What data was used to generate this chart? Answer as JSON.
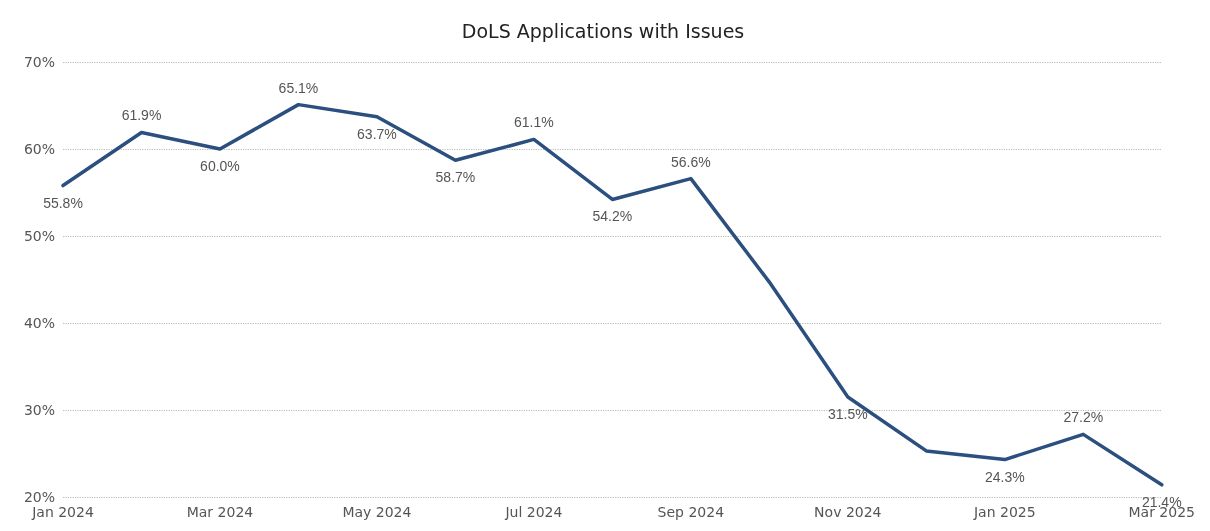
{
  "chart_data": {
    "type": "line",
    "title": "DoLS Applications with Issues",
    "categories": [
      "Jan 2024",
      null,
      "Mar 2024",
      null,
      "May 2024",
      null,
      "Jul 2024",
      null,
      "Sep 2024",
      null,
      "Nov 2024",
      null,
      "Jan 2025",
      null,
      "Mar 2025"
    ],
    "series": [
      {
        "color": "#2b4f7e",
        "values": [
          55.8,
          61.9,
          60.0,
          65.1,
          63.7,
          58.7,
          61.1,
          54.2,
          56.6,
          44.7,
          31.5,
          25.3,
          24.3,
          27.2,
          21.4
        ],
        "value_labels": [
          "55.8%",
          "61.9%",
          "60.0%",
          "65.1%",
          "63.7%",
          "58.7%",
          "61.1%",
          "54.2%",
          "56.6%",
          null,
          "31.5%",
          null,
          "24.3%",
          "27.2%",
          "21.4%"
        ]
      }
    ],
    "ylim": [
      20,
      70
    ],
    "yticks": [
      {
        "value": 20,
        "label": "20%"
      },
      {
        "value": 30,
        "label": "30%"
      },
      {
        "value": 40,
        "label": "40%"
      },
      {
        "value": 50,
        "label": "50%"
      },
      {
        "value": 60,
        "label": "60%"
      },
      {
        "value": 70,
        "label": "70%"
      }
    ],
    "grid": "y",
    "marker": "none",
    "line_style": "solid"
  }
}
